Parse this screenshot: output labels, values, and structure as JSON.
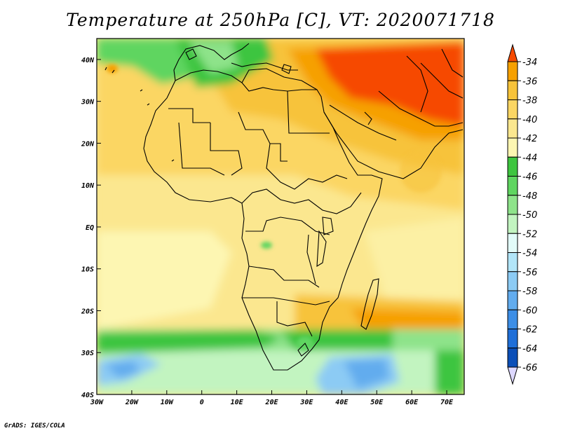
{
  "title": "Temperature at 250hPa [C], VT: 2020071718",
  "credit": "GrADS: IGES/COLA",
  "map": {
    "lon_range": [
      -30,
      75
    ],
    "lat_range": [
      -40,
      45
    ],
    "lat_ticks": [
      {
        "value": 40,
        "label": "40N"
      },
      {
        "value": 30,
        "label": "30N"
      },
      {
        "value": 20,
        "label": "20N"
      },
      {
        "value": 10,
        "label": "10N"
      },
      {
        "value": 0,
        "label": "EQ"
      },
      {
        "value": -10,
        "label": "10S"
      },
      {
        "value": -20,
        "label": "20S"
      },
      {
        "value": -30,
        "label": "30S"
      },
      {
        "value": -40,
        "label": "40S"
      }
    ],
    "lon_ticks": [
      {
        "value": -30,
        "label": "30W"
      },
      {
        "value": -20,
        "label": "20W"
      },
      {
        "value": -10,
        "label": "10W"
      },
      {
        "value": 0,
        "label": "0"
      },
      {
        "value": 10,
        "label": "10E"
      },
      {
        "value": 20,
        "label": "20E"
      },
      {
        "value": 30,
        "label": "30E"
      },
      {
        "value": 40,
        "label": "40E"
      },
      {
        "value": 50,
        "label": "50E"
      },
      {
        "value": 60,
        "label": "60E"
      },
      {
        "value": 70,
        "label": "70E"
      }
    ]
  },
  "colorbar": {
    "levels": [
      {
        "label": "-34",
        "color": "#f6a000"
      },
      {
        "label": "-36",
        "color": "#f7c33a"
      },
      {
        "label": "-38",
        "color": "#fbd664"
      },
      {
        "label": "-40",
        "color": "#fbe78f"
      },
      {
        "label": "-42",
        "color": "#fdf6b2"
      },
      {
        "label": "-44",
        "color": "#3ec53f"
      },
      {
        "label": "-46",
        "color": "#5fd560"
      },
      {
        "label": "-48",
        "color": "#8ee38a"
      },
      {
        "label": "-50",
        "color": "#c2f4c0"
      },
      {
        "label": "-52",
        "color": "#e2fbf8"
      },
      {
        "label": "-54",
        "color": "#b2e5f8"
      },
      {
        "label": "-56",
        "color": "#8ccbf4"
      },
      {
        "label": "-58",
        "color": "#62acee"
      },
      {
        "label": "-60",
        "color": "#3c8ee6"
      },
      {
        "label": "-62",
        "color": "#1f6fd8"
      },
      {
        "label": "-64",
        "color": "#0b4fb8"
      },
      {
        "label": "-66",
        "color": "#021e78"
      }
    ],
    "top_color": "#f64a00",
    "bottom_color": "#ddd8ff"
  }
}
